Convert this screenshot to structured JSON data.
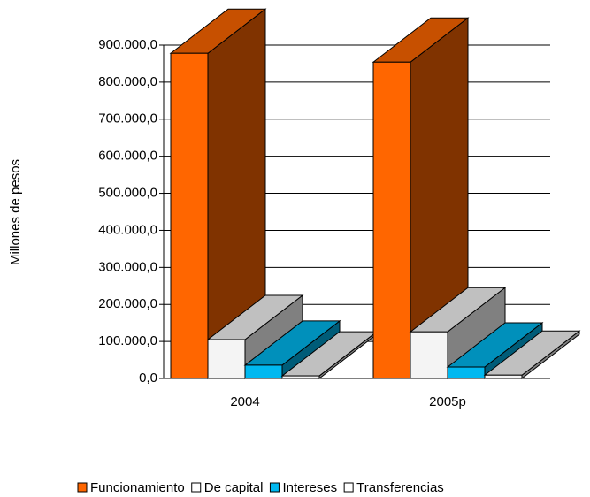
{
  "chart_data": {
    "type": "bar3d",
    "y_label": "Millones de pesos",
    "categories": [
      "2004",
      "2005p"
    ],
    "series": [
      {
        "name": "Funcionamiento",
        "color": "#ff6600",
        "values": [
          878000,
          854000
        ]
      },
      {
        "name": "De capital",
        "color": "#ffffff",
        "values": [
          105000,
          126000
        ]
      },
      {
        "name": "Intereses",
        "color": "#00b8f0",
        "values": [
          36000,
          31000
        ]
      },
      {
        "name": "Transferencias",
        "color": "#ffffff",
        "values": [
          7000,
          9000
        ]
      }
    ],
    "ylim": [
      0,
      900000
    ],
    "yticks": [
      {
        "value": 0,
        "label": "0,0"
      },
      {
        "value": 100000,
        "label": "100.000,0"
      },
      {
        "value": 200000,
        "label": "200.000,0"
      },
      {
        "value": 300000,
        "label": "300.000,0"
      },
      {
        "value": 400000,
        "label": "400.000,0"
      },
      {
        "value": 500000,
        "label": "500.000,0"
      },
      {
        "value": 600000,
        "label": "600.000,0"
      },
      {
        "value": 700000,
        "label": "700.000,0"
      },
      {
        "value": 800000,
        "label": "800.000,0"
      },
      {
        "value": 900000,
        "label": "900.000,0"
      }
    ],
    "grid": true
  }
}
